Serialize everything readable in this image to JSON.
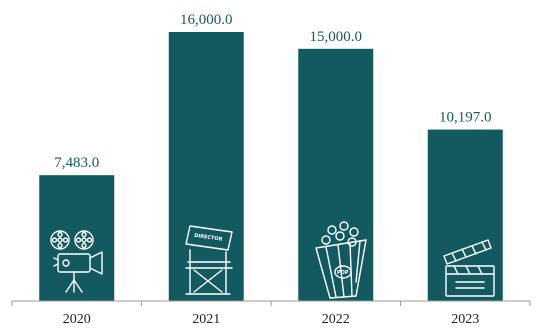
{
  "chart_data": {
    "type": "bar",
    "categories": [
      "2020",
      "2021",
      "2022",
      "2023"
    ],
    "values": [
      7483.0,
      16000.0,
      15000.0,
      10197.0
    ],
    "data_labels": [
      "7,483.0",
      "16,000.0",
      "15,000.0",
      "10,197.0"
    ],
    "title": "",
    "xlabel": "",
    "ylabel": "",
    "ylim": [
      0,
      16000
    ],
    "grid": false,
    "bar_color": "#135a60",
    "bar_icons": [
      "film-projector-icon",
      "director-chair-icon",
      "popcorn-icon",
      "clapperboard-icon"
    ],
    "icon_text": {
      "chair_label": "DIRECTOR",
      "popcorn_label": "POP"
    }
  }
}
